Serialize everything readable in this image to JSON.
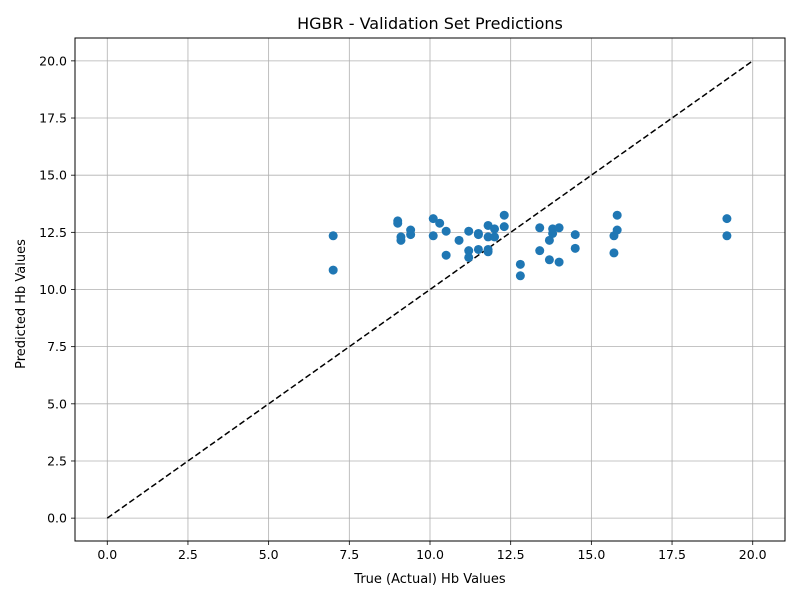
{
  "chart_data": {
    "type": "scatter",
    "title": "HGBR - Validation Set Predictions",
    "xlabel": "True (Actual) Hb Values",
    "ylabel": "Predicted Hb Values",
    "xlim": [
      -1.0,
      21.0
    ],
    "ylim": [
      -1.0,
      21.0
    ],
    "x_ticks": [
      0.0,
      2.5,
      5.0,
      7.5,
      10.0,
      12.5,
      15.0,
      17.5,
      20.0
    ],
    "y_ticks": [
      0.0,
      2.5,
      5.0,
      7.5,
      10.0,
      12.5,
      15.0,
      17.5,
      20.0
    ],
    "x_tick_labels": [
      "0.0",
      "2.5",
      "5.0",
      "7.5",
      "10.0",
      "12.5",
      "15.0",
      "17.5",
      "20.0"
    ],
    "y_tick_labels": [
      "0.0",
      "2.5",
      "5.0",
      "7.5",
      "10.0",
      "12.5",
      "15.0",
      "17.5",
      "20.0"
    ],
    "grid": true,
    "point_color": "#1f77b4",
    "reference_line": {
      "x": [
        0,
        20
      ],
      "y": [
        0,
        20
      ],
      "style": "dashed",
      "color": "#000000"
    },
    "points": [
      {
        "x": 7.0,
        "y": 12.35
      },
      {
        "x": 7.0,
        "y": 10.85
      },
      {
        "x": 9.0,
        "y": 13.0
      },
      {
        "x": 9.0,
        "y": 12.9
      },
      {
        "x": 9.1,
        "y": 12.3
      },
      {
        "x": 9.1,
        "y": 12.15
      },
      {
        "x": 9.4,
        "y": 12.6
      },
      {
        "x": 9.4,
        "y": 12.4
      },
      {
        "x": 10.1,
        "y": 13.1
      },
      {
        "x": 10.1,
        "y": 12.35
      },
      {
        "x": 10.3,
        "y": 12.9
      },
      {
        "x": 10.5,
        "y": 12.55
      },
      {
        "x": 10.5,
        "y": 11.5
      },
      {
        "x": 10.9,
        "y": 12.15
      },
      {
        "x": 11.2,
        "y": 12.55
      },
      {
        "x": 11.2,
        "y": 11.7
      },
      {
        "x": 11.2,
        "y": 11.4
      },
      {
        "x": 11.5,
        "y": 12.45
      },
      {
        "x": 11.5,
        "y": 12.4
      },
      {
        "x": 11.5,
        "y": 11.75
      },
      {
        "x": 11.8,
        "y": 12.8
      },
      {
        "x": 11.8,
        "y": 12.3
      },
      {
        "x": 11.8,
        "y": 11.75
      },
      {
        "x": 11.8,
        "y": 11.65
      },
      {
        "x": 12.0,
        "y": 12.65
      },
      {
        "x": 12.0,
        "y": 12.3
      },
      {
        "x": 12.3,
        "y": 13.25
      },
      {
        "x": 12.3,
        "y": 12.75
      },
      {
        "x": 12.8,
        "y": 11.1
      },
      {
        "x": 12.8,
        "y": 10.6
      },
      {
        "x": 13.4,
        "y": 12.7
      },
      {
        "x": 13.4,
        "y": 11.7
      },
      {
        "x": 13.7,
        "y": 12.15
      },
      {
        "x": 13.7,
        "y": 11.3
      },
      {
        "x": 13.8,
        "y": 12.65
      },
      {
        "x": 13.8,
        "y": 12.45
      },
      {
        "x": 14.0,
        "y": 12.7
      },
      {
        "x": 14.0,
        "y": 11.2
      },
      {
        "x": 14.5,
        "y": 12.4
      },
      {
        "x": 14.5,
        "y": 11.8
      },
      {
        "x": 15.7,
        "y": 12.35
      },
      {
        "x": 15.7,
        "y": 11.6
      },
      {
        "x": 15.8,
        "y": 13.25
      },
      {
        "x": 15.8,
        "y": 12.6
      },
      {
        "x": 19.2,
        "y": 13.1
      },
      {
        "x": 19.2,
        "y": 12.35
      }
    ]
  }
}
